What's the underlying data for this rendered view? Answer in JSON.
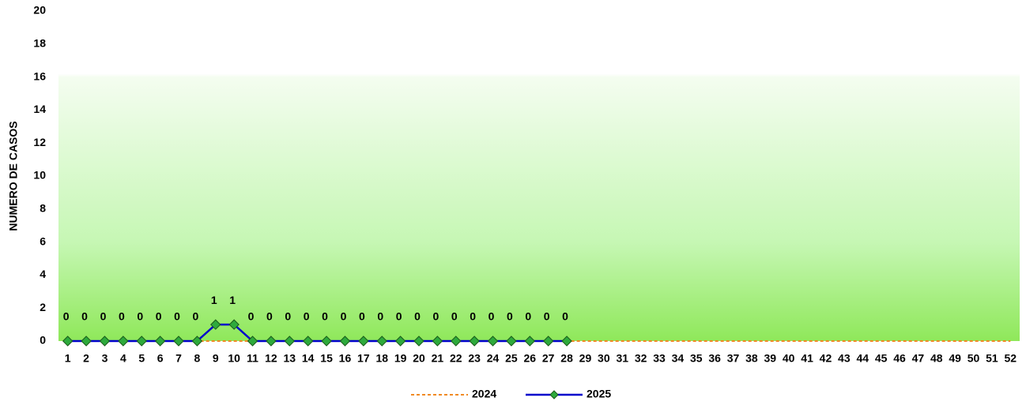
{
  "chart_data": {
    "type": "line",
    "y_label": "NUMERO DE CASOS",
    "categories": [
      "1",
      "2",
      "3",
      "4",
      "5",
      "6",
      "7",
      "8",
      "9",
      "10",
      "11",
      "12",
      "13",
      "14",
      "15",
      "16",
      "17",
      "18",
      "19",
      "20",
      "21",
      "22",
      "23",
      "24",
      "25",
      "26",
      "27",
      "28",
      "29",
      "30",
      "31",
      "32",
      "33",
      "34",
      "35",
      "36",
      "37",
      "38",
      "39",
      "40",
      "41",
      "42",
      "43",
      "44",
      "45",
      "46",
      "47",
      "48",
      "49",
      "50",
      "51",
      "52"
    ],
    "series": [
      {
        "name": "2024",
        "color": "#f08a24",
        "dashed": true,
        "values": [
          0,
          0,
          0,
          0,
          0,
          0,
          0,
          0,
          0,
          0,
          0,
          0,
          0,
          0,
          0,
          0,
          0,
          0,
          0,
          0,
          0,
          0,
          0,
          0,
          0,
          0,
          0,
          0,
          0,
          0,
          0,
          0,
          0,
          0,
          0,
          0,
          0,
          0,
          0,
          0,
          0,
          0,
          0,
          0,
          0,
          0,
          0,
          0,
          0,
          0,
          0,
          0
        ]
      },
      {
        "name": "2025",
        "color": "#0000cc",
        "marker_color": "#2eaa3c",
        "data_labels": true,
        "values": [
          0,
          0,
          0,
          0,
          0,
          0,
          0,
          0,
          1,
          1,
          0,
          0,
          0,
          0,
          0,
          0,
          0,
          0,
          0,
          0,
          0,
          0,
          0,
          0,
          0,
          0,
          0,
          0,
          null,
          null,
          null,
          null,
          null,
          null,
          null,
          null,
          null,
          null,
          null,
          null,
          null,
          null,
          null,
          null,
          null,
          null,
          null,
          null,
          null,
          null,
          null,
          null
        ]
      }
    ],
    "ylim": [
      0,
      20
    ],
    "yticks": [
      0,
      2,
      4,
      6,
      8,
      10,
      12,
      14,
      16,
      18,
      20
    ]
  }
}
